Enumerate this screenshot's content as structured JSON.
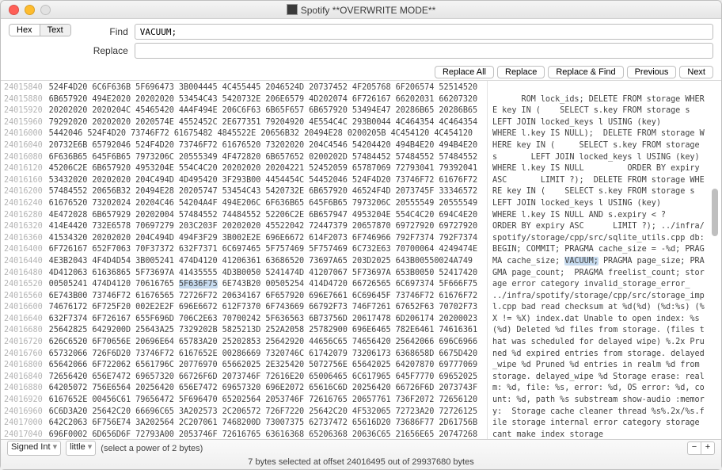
{
  "title": "Spotify **OVERWRITE MODE**",
  "tabs": {
    "hex": "Hex",
    "text": "Text"
  },
  "find_label": "Find",
  "replace_label": "Replace",
  "find_value": "VACUUM;",
  "buttons": {
    "replace_all": "Replace All",
    "replace": "Replace",
    "replace_find": "Replace & Find",
    "previous": "Previous",
    "next": "Next"
  },
  "offsets": [
    "24015840",
    "24015880",
    "24015920",
    "24015960",
    "24016000",
    "24016040",
    "24016080",
    "24016120",
    "24016160",
    "24016200",
    "24016240",
    "24016280",
    "24016320",
    "24016360",
    "24016400",
    "24016440",
    "24016480",
    "24016520",
    "24016560",
    "24016600",
    "24016640",
    "24016680",
    "24016720",
    "24016760",
    "24016800",
    "24016840",
    "24016880",
    "24016920",
    "24016960",
    "24017000",
    "24017040",
    "24017080",
    "24017120"
  ],
  "hexrows": [
    "524F4D20 6C6F636B 5F696473 3B004445 4C455445 2046524D 20737452 4F205768 6F206574 52514520",
    "6B657920 494E2020 20202020 53454C43 5420732E 206E6579 4D202074 6F726167 66202031 66207320",
    "20202020 2020204C 45465420 4A4F494E 206C6F63 6B65F657 6B657920 53494E47 20286B65 20286B65",
    "79292020 20202020 2020574E 4552452C 2E677351 79204920 4E554C4C 293B0044 4C464354 4C464354",
    "5442046 524F4D20 73746F72 61675482 4845522E 20656B32 20494E28 0200205B 4C454120 4C454120",
    "20732E6B 65792046 524F4D20 73746F72 61676520 73202020 204C4546 54204420 494B4E20 494B4E20",
    "6F636B65 645F6B65 7973206C 20555349 4F472820 6B657652 0200202D 57484452 57484552 57484552",
    "45206C2E 6B657920 4953204E 554C4C20 20202020 20204221 52452059 65787069 72793041 79392041",
    "53432020 20202020 204C494D 4D495420 3F293B00 4454454C 54452046 524F4D20 73746F72 61676F72",
    "57484552 20656B32 20494E28 20205747 53454C43 5420732E 6B657920 46524F4D 2073745F 33346572",
    "61676520 73202024 20204C46 54204A4F 494E206C 6F636B65 645F6B65 7973206C 20555549 20555549",
    "4E472028 6B657929 20202004 57484552 74484552 52206C2E 6B657947 4953204E 554C4C20 694C4E20",
    "414E4420 732E6578 70697279 203C203F 20202020 45522042 72447379 20657870 69727920 69727920",
    "41534320 20202020 204C494D 494F3F29 3B002E2E 696E6672 614F2073 6F746966 792F7374 792F7374",
    "6F726167 652F7063 70F37372 632F7371 6C697465 5F757469 5F757469 6C732E63 70700064 4249474E",
    "4E3B2043 4F4D4D54 3B005241 474D4120 41206361 63686520 73697A65 203D2025 643B00550024A749",
    "4D412063 61636865 5F73697A 41435555 4D3B0050 5241474D 41207067 5F73697A 653B0050 52417420",
    "00505241 474D4120 70616765 5F636F75 6E743B20 00505254 414D4720 66726565 6C697374 5F666F75",
    "6E743B00 73746F72 61676565 72726F72 20634167 6F657920 696E7661 6C69645F 73746F72 61676F72",
    "74676172 6F725F20 002E2E2F 696E6672 612F7370 6F743669 66792F73 746F7261 67652F63 70702F73",
    "632F7374 6F726167 655F696D 706C2E63 70700242 5F636563 6B73756D 20617478 6D206174 20200023",
    "25642825 6429200D 25643A25 7329202B 5825213D 252A2058 25782900 696E6465 782E6461 74616361",
    "626C6520 6F70656E 20696E64 65783A20 25202853 25642920 44656C65 74656420 25642066 696C6966",
    "65732066 726F6D20 73746F72 6167652E 00286669 7320746C 61742079 73206173 6368658D 6675D420",
    "65642066 6F722062 6561796C 20776970 65662025 2E325420 5072756E 65642025 64207870 69777069",
    "72656420 656E7472 69657320 66726F6D 2073746F 72616E20 65006465 6C617965 645F7770 69652025",
    "64205072 756E6564 20256420 656E7472 69657320 696E2072 65616C6D 20256420 66726F6D 2073743F",
    "6167652E 00456C61 79656472 5F696470 65202564 2053746F 72616765 20657761 736F2072 72656120",
    "6C6D3A20 25642C20 66696C65 3A202573 2C206572 726F7220 25642C20 4F532065 72723A20 72726125",
    "642C2063 6F756E74 3A202564 2C207061 7468200D 73007375 62737472 65616D20 73686F77 2D61756B",
    "696F0002 6D656D6F 72793A00 2053746F 72616765 63616368 65206368 20636C65 21656E65 20747268",
    "00257332 2E32782F 25732066 696C6520 73746F72 61676520 696E7465 726E616C 20657272 6F722063",
    "61746567 6F727900 73746F72 61676520 63616E74 206D616B 20696E64 20737430 72616765"
  ],
  "ascii_pre": "ROM lock_ids; DELETE FROM storage WHERE key IN (    SELECT s.key FROM storage s       LEFT JOIN locked_keys l USING (key)         WHERE l.key IS NULL);  DELETE FROM storage WHERE key IN (     SELECT s.key FROM storage s       LEFT JOIN locked_keys l USING (key)         WHERE l.key IS NULL         ORDER BY expiry ASC       LIMIT ?);  DELETE FROM storage WHERE key IN (    SELECT s.key FROM storage s        LEFT JOIN locked_keys l USING (key)         WHERE l.key IS NULL AND s.expiry < ?        ORDER BY expiry ASC      LIMIT ?); ../infra/spotify/storage/cpp/src/sqlite_utils.cpp db:  BEGIN; COMMIT; PRAGMA cache_size = -%d; PRAGMA cache_size; ",
  "ascii_hilite": "VACUUM;",
  "ascii_post": " PRAGMA page_size; PRAGMA page_count;  PRAGMA freelist_count; storage error category invalid_storage_error_  ../infra/spotify/storage/cpp/src/storage_impl.cpp bad read checksum at %d(%d) (%d:%s) (%X != %X) index.dat Unable to open index: %s (%d) Deleted %d files from storage. (files that was scheduled for delayed wipe) %.2x Pruned %d expired entries from storage. delayed_wipe %d Pruned %d entries in realm %d from storage. delayed_wipe %d Storage erase: realm: %d, file: %s, error: %d, OS error: %d, count: %d, path %s substream show-audio :memory:  Storage cache cleaner thread %s%.2x/%s.file storage internal error category storage cant make index storage",
  "hex_hilite_row": 17,
  "hex_hilite_start_char": 27,
  "hex_hilite_end_char": 35,
  "footer": {
    "signed_int": "Signed Int",
    "endian": "little",
    "value": "(select a power of 2 bytes)",
    "status": "7 bytes selected at offset 24016495 out of 29937680 bytes"
  }
}
